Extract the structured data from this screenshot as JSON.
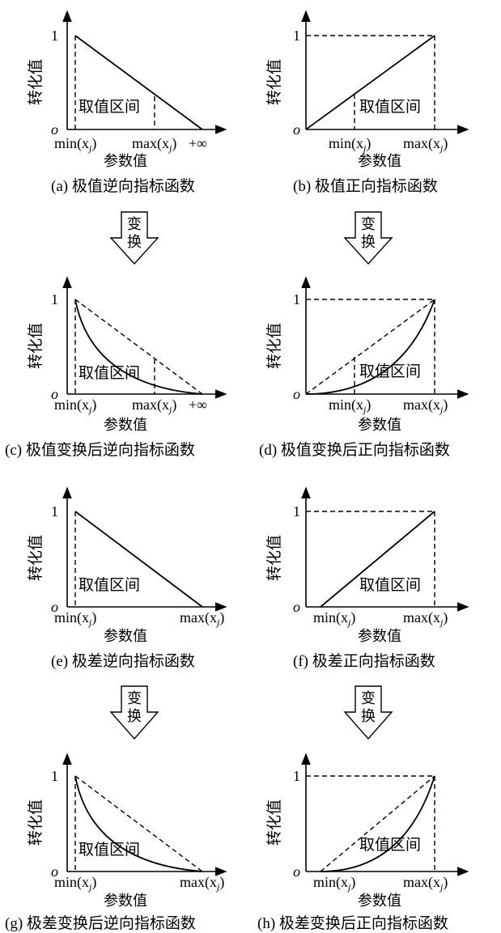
{
  "panels": [
    {
      "id": "a",
      "caption": "(a) 极值逆向指标函数",
      "ylabel": "转化值",
      "xlabel": "参数值",
      "range": "取值区间",
      "min": "min(x",
      "max": "max(x",
      "plusinf": "+∞",
      "origin": "o",
      "one": "1"
    },
    {
      "id": "b",
      "caption": "(b) 极值正向指标函数",
      "ylabel": "转化值",
      "xlabel": "参数值",
      "range": "取值区间",
      "min": "min(x",
      "max": "max(x",
      "origin": "o",
      "one": "1"
    },
    {
      "id": "c",
      "caption": "(c) 极值变换后逆向指标函数",
      "ylabel": "转化值",
      "xlabel": "参数值",
      "range": "取值区间",
      "min": "min(x",
      "max": "max(x",
      "plusinf": "+∞",
      "origin": "o",
      "one": "1"
    },
    {
      "id": "d",
      "caption": "(d) 极值变换后正向指标函数",
      "ylabel": "转化值",
      "xlabel": "参数值",
      "range": "取值区间",
      "min": "min(x",
      "max": "max(x",
      "origin": "o",
      "one": "1"
    },
    {
      "id": "e",
      "caption": "(e) 极差逆向指标函数",
      "ylabel": "转化值",
      "xlabel": "参数值",
      "range": "取值区间",
      "min": "min(x",
      "max": "max(x",
      "origin": "o",
      "one": "1"
    },
    {
      "id": "f",
      "caption": "(f) 极差正向指标函数",
      "ylabel": "转化值",
      "xlabel": "参数值",
      "range": "取值区间",
      "min": "min(x",
      "max": "max(x",
      "origin": "o",
      "one": "1"
    },
    {
      "id": "g",
      "caption": "(g) 极差变换后逆向指标函数",
      "ylabel": "转化值",
      "xlabel": "参数值",
      "range": "取值区间",
      "min": "min(x",
      "max": "max(x",
      "origin": "o",
      "one": "1"
    },
    {
      "id": "h",
      "caption": "(h) 极差变换后正向指标函数",
      "ylabel": "转化值",
      "xlabel": "参数值",
      "range": "取值区间",
      "min": "min(x",
      "max": "max(x",
      "origin": "o",
      "one": "1"
    }
  ],
  "arrow_top": "变",
  "arrow_bottom": "换",
  "subscript": "j",
  "close_paren": ")"
}
